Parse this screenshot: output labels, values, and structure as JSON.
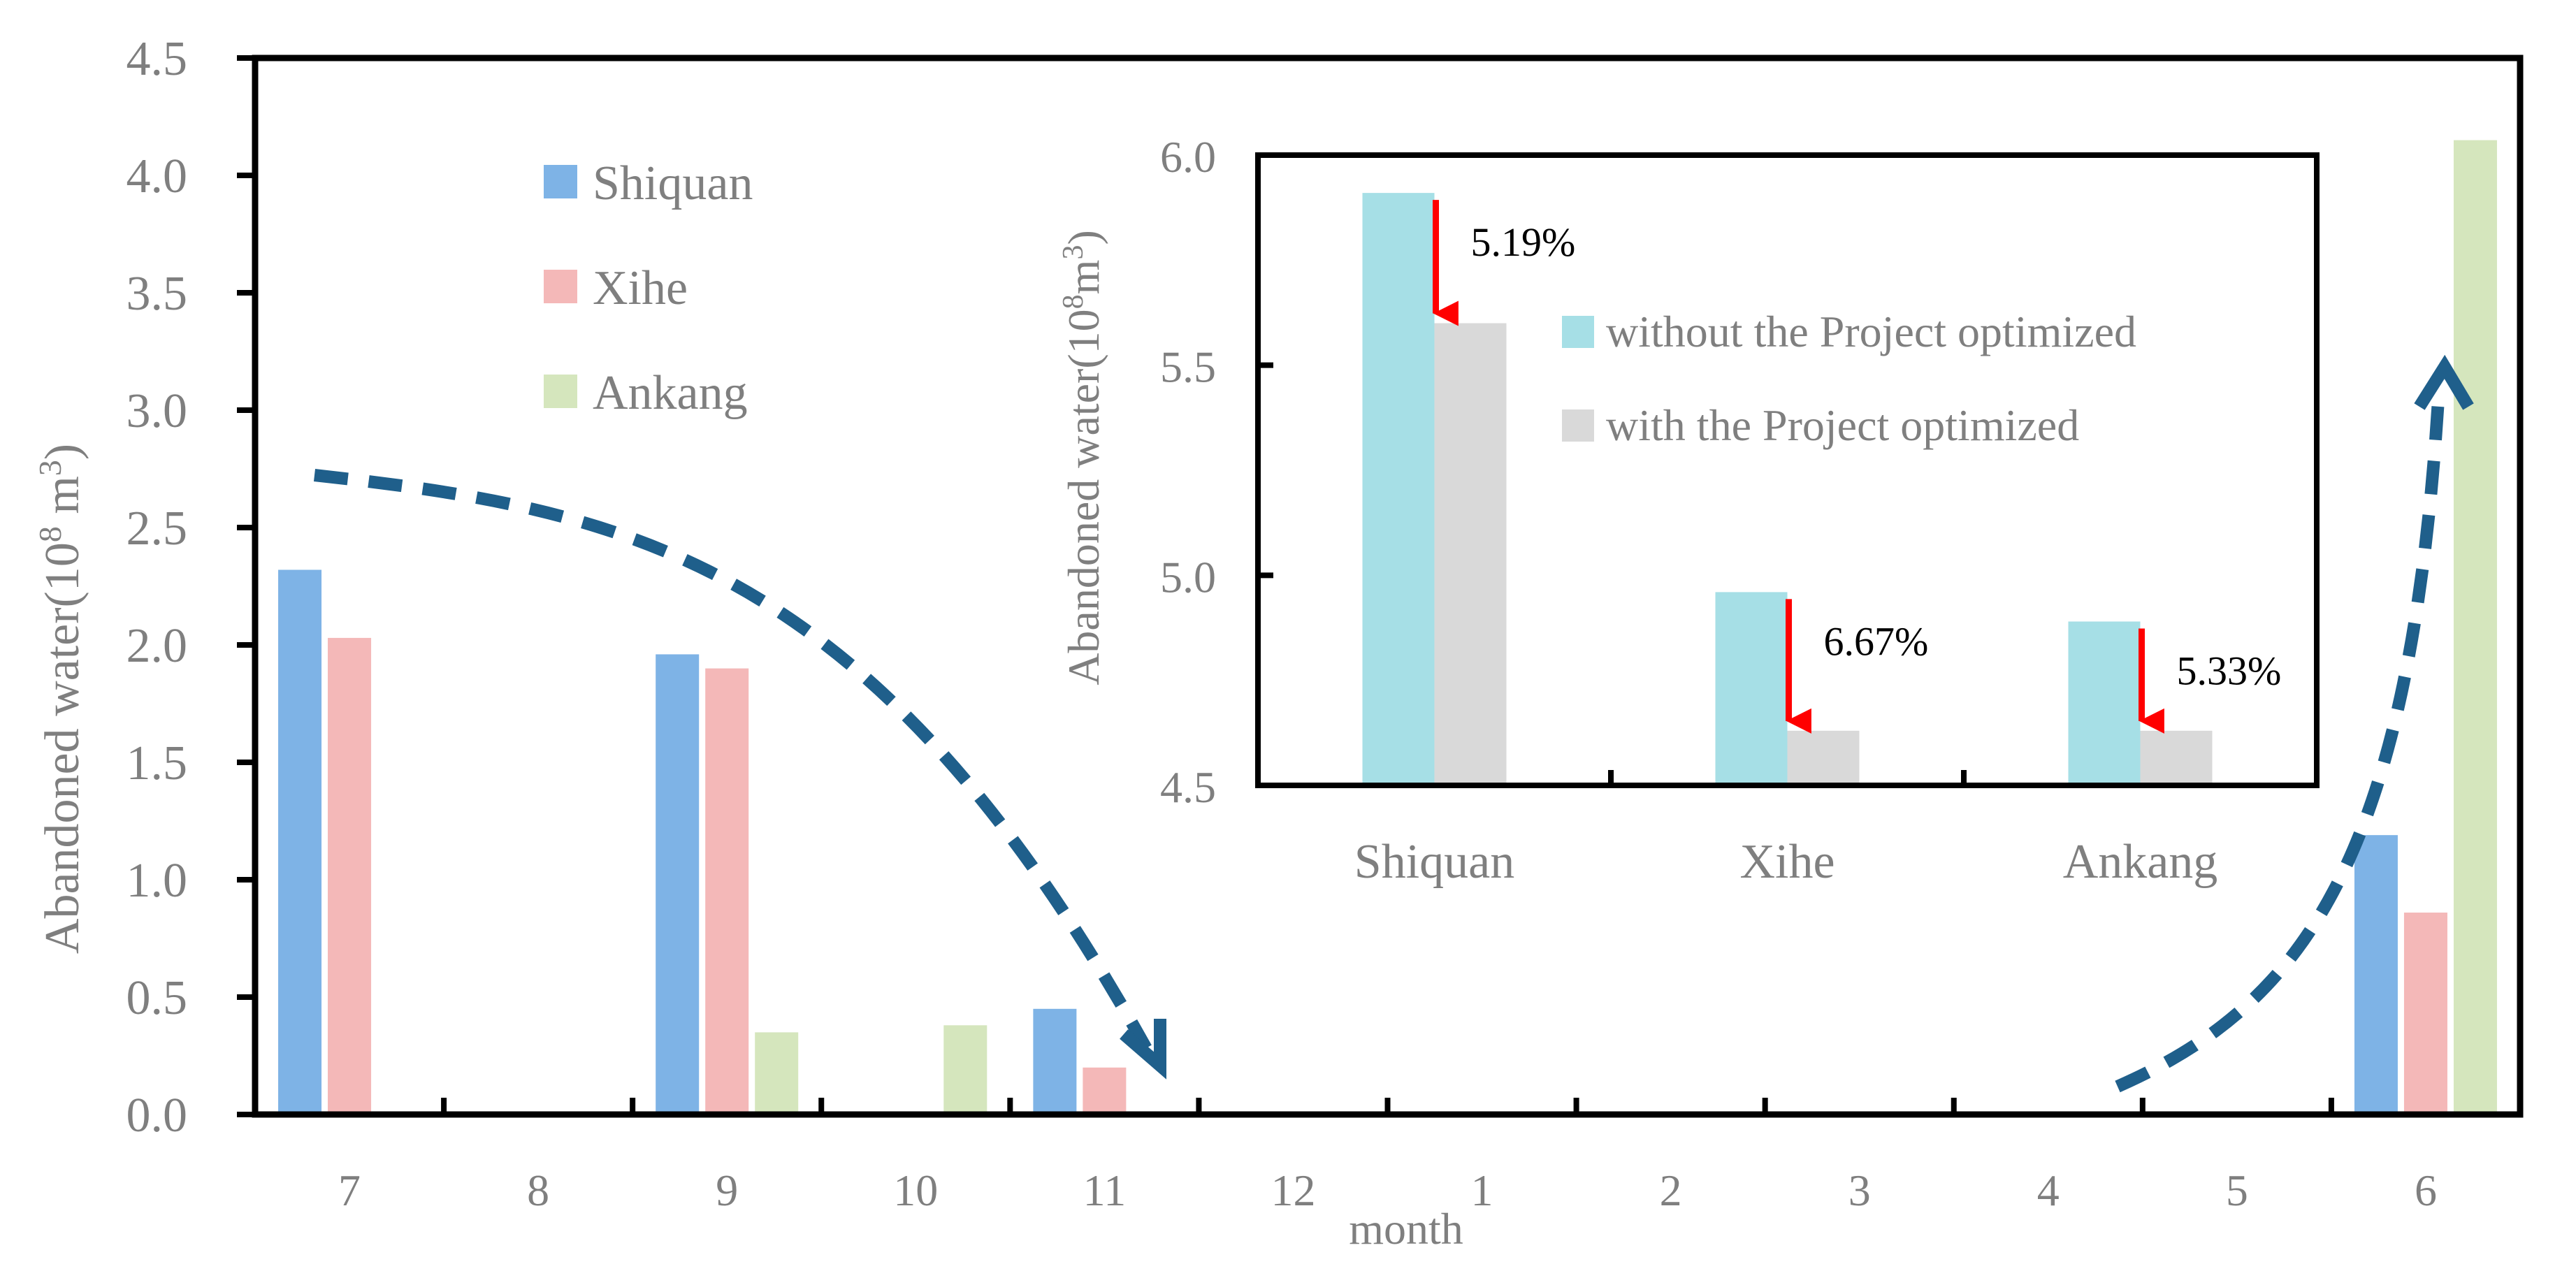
{
  "chart_data": [
    {
      "type": "bar",
      "id": "main",
      "xlabel": "month",
      "ylabel_prefix": "Abandoned  water(10",
      "ylabel_sup1": "8",
      "ylabel_mid": " m",
      "ylabel_sup2": "3",
      "ylabel_suffix": ")",
      "ylim": [
        0,
        4.5
      ],
      "yticks": [
        0.0,
        0.5,
        1.0,
        1.5,
        2.0,
        2.5,
        3.0,
        3.5,
        4.0,
        4.5
      ],
      "ytick_labels": [
        "0.0",
        "0.5",
        "1.0",
        "1.5",
        "2.0",
        "2.5",
        "3.0",
        "3.5",
        "4.0",
        "4.5"
      ],
      "categories": [
        "7",
        "8",
        "9",
        "10",
        "11",
        "12",
        "1",
        "2",
        "3",
        "4",
        "5",
        "6"
      ],
      "series": [
        {
          "name": "Shiquan",
          "color": "#7eb3e6",
          "values": [
            2.32,
            0,
            1.96,
            0,
            0.45,
            0,
            0,
            0,
            0,
            0,
            0,
            1.19
          ]
        },
        {
          "name": "Xihe",
          "color": "#f4b8b8",
          "values": [
            2.03,
            0,
            1.9,
            0,
            0.2,
            0,
            0,
            0,
            0,
            0,
            0,
            0.86
          ]
        },
        {
          "name": "Ankang",
          "color": "#d5e6bd",
          "values": [
            0,
            0,
            0.35,
            0.38,
            0,
            0,
            0,
            0,
            0,
            0,
            0,
            4.15
          ]
        }
      ],
      "legend_position": "top-left",
      "annotations": [
        {
          "type": "dashed-arrow",
          "color": "#1f5f8b",
          "from_category": "7",
          "to_category": "11",
          "direction": "down"
        },
        {
          "type": "dashed-arrow",
          "color": "#1f5f8b",
          "from_category": "4",
          "to_category": "6",
          "direction": "up"
        }
      ]
    },
    {
      "type": "bar",
      "id": "inset",
      "ylabel_prefix": "Abandoned water(10",
      "ylabel_sup1": "8",
      "ylabel_mid": "m",
      "ylabel_sup2": "3",
      "ylabel_suffix": ")",
      "ylim": [
        4.5,
        6.0
      ],
      "yticks": [
        4.5,
        5.0,
        5.5,
        6.0
      ],
      "ytick_labels": [
        "4.5",
        "5.0",
        "5.5",
        "6.0"
      ],
      "categories": [
        "Shiquan",
        "Xihe",
        "Ankang"
      ],
      "series": [
        {
          "name": "without the Project optimized",
          "color": "#a6dfe6",
          "values": [
            5.91,
            4.96,
            4.89
          ]
        },
        {
          "name": "with the Project optimized",
          "color": "#d9d9d9",
          "values": [
            5.6,
            4.63,
            4.63
          ]
        }
      ],
      "reductions": [
        "5.19%",
        "6.67%",
        "5.33%"
      ],
      "arrow_color": "#ff0000",
      "legend_position": "right"
    }
  ]
}
